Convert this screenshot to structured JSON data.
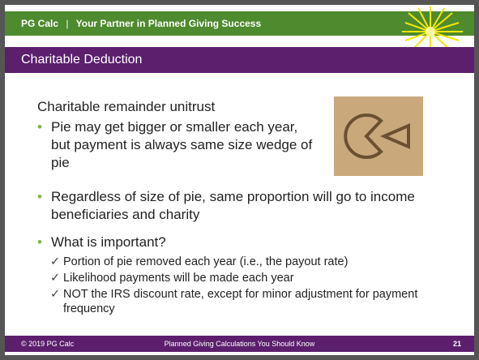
{
  "header": {
    "brand": "PG Calc",
    "separator": "|",
    "tagline": "Your Partner in Planned Giving Success"
  },
  "title": "Charitable Deduction",
  "body": {
    "heading": "Charitable remainder unitrust",
    "bullets": [
      {
        "text": "Pie may get bigger or smaller each year, but payment is always same size wedge of pie"
      },
      {
        "text": "Regardless of size of pie, same proportion will go to income beneficiaries and charity"
      },
      {
        "text": "What is important?",
        "checks": [
          "Portion of pie removed each year (i.e., the payout rate)",
          "Likelihood payments will be made each year",
          "NOT the IRS discount rate, except for minor adjustment for payment frequency"
        ]
      }
    ]
  },
  "footer": {
    "left": "© 2019 PG Calc",
    "center": "Planned Giving Calculations You Should Know",
    "page": 21
  }
}
